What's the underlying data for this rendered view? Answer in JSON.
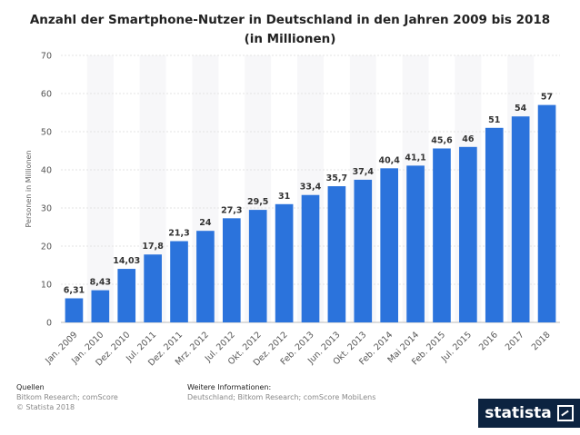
{
  "chart_data": {
    "type": "bar",
    "title_line1": "Anzahl der Smartphone-Nutzer in Deutschland in den Jahren 2009 bis 2018",
    "title_line2": "(in Millionen)",
    "ylabel": "Personen in Millionen",
    "xlabel": "",
    "ylim": [
      0,
      70
    ],
    "yticks": [
      0,
      10,
      20,
      30,
      40,
      50,
      60,
      70
    ],
    "grid": true,
    "bar_color": "#2b73dc",
    "categories": [
      "Jan. 2009",
      "Jan. 2010",
      "Dez. 2010",
      "Jul. 2011",
      "Dez. 2011",
      "Mrz. 2012",
      "Jul. 2012",
      "Okt. 2012",
      "Dez. 2012",
      "Feb. 2013",
      "Jun. 2013",
      "Okt. 2013",
      "Feb. 2014",
      "Mai 2014",
      "Feb. 2015",
      "Jul. 2015",
      "2016",
      "2017",
      "2018"
    ],
    "values": [
      6.31,
      8.43,
      14.03,
      17.8,
      21.3,
      24,
      27.3,
      29.5,
      31,
      33.4,
      35.7,
      37.4,
      40.4,
      41.1,
      45.6,
      46,
      51,
      54,
      57
    ],
    "value_labels": [
      "6,31",
      "8,43",
      "14,03",
      "17,8",
      "21,3",
      "24",
      "27,3",
      "29,5",
      "31",
      "33,4",
      "35,7",
      "37,4",
      "40,4",
      "41,1",
      "45,6",
      "46",
      "51",
      "54",
      "57"
    ]
  },
  "footer": {
    "sources_heading": "Quellen",
    "sources_line1": "Bitkom Research; comScore",
    "sources_line2": "© Statista 2018",
    "info_heading": "Weitere Informationen:",
    "info_line1": "Deutschland; Bitkom Research; comScore MobiLens"
  },
  "brand": {
    "logo_text": "statista",
    "logo_color": "#0c2340"
  }
}
